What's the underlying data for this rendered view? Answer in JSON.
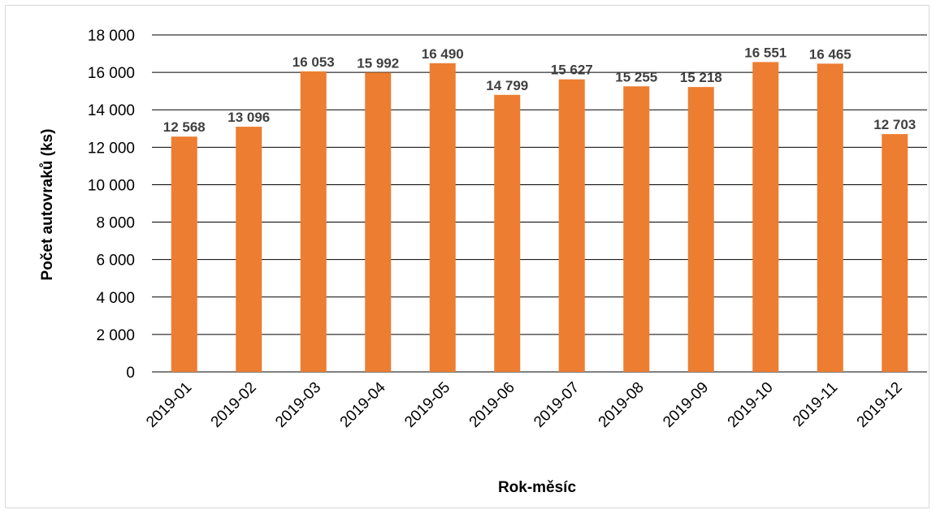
{
  "chart_data": {
    "type": "bar",
    "title": "",
    "xlabel": "Rok-měsíc",
    "ylabel": "Počet autovraků (ks)",
    "ylim": [
      0,
      18000
    ],
    "yticks": [
      0,
      2000,
      4000,
      6000,
      8000,
      10000,
      12000,
      14000,
      16000,
      18000
    ],
    "ytick_labels": [
      "0",
      "2 000",
      "4 000",
      "6 000",
      "8 000",
      "10 000",
      "12 000",
      "14 000",
      "16 000",
      "18 000"
    ],
    "grid": true,
    "legend": "none",
    "bar_color": "#ED7D31",
    "categories": [
      "2019-01",
      "2019-02",
      "2019-03",
      "2019-04",
      "2019-05",
      "2019-06",
      "2019-07",
      "2019-08",
      "2019-09",
      "2019-10",
      "2019-11",
      "2019-12"
    ],
    "values": [
      12568,
      13096,
      16053,
      15992,
      16490,
      14799,
      15627,
      15255,
      15218,
      16551,
      16465,
      12703
    ],
    "value_labels": [
      "12 568",
      "13 096",
      "16 053",
      "15 992",
      "16 490",
      "14 799",
      "15 627",
      "15 255",
      "15 218",
      "16 551",
      "16 465",
      "12 703"
    ]
  }
}
